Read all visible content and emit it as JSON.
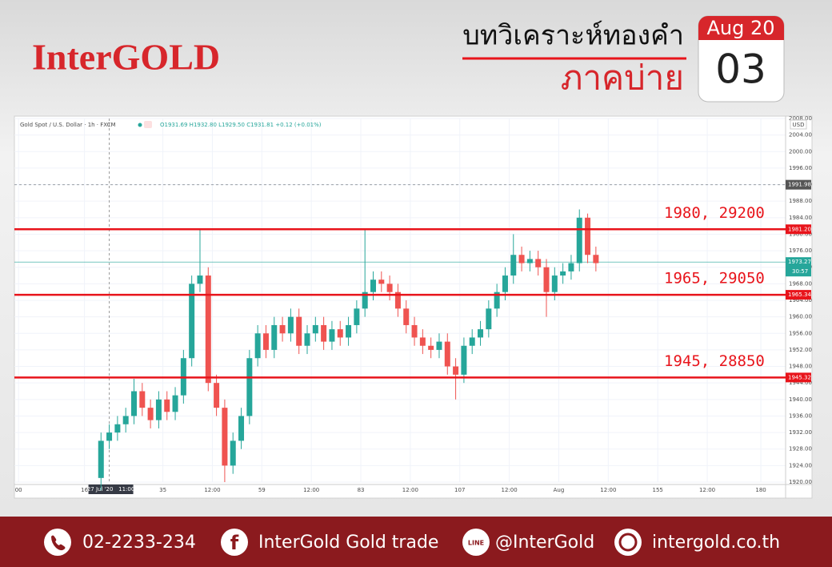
{
  "header": {
    "logo": "InterGOLD",
    "title": "บทวิเคราะห์ทองคำ",
    "subtitle": "ภาคบ่าย",
    "calendar_month": "Aug 20",
    "calendar_day": "03"
  },
  "chart_data": {
    "type": "candlestick",
    "title": "Gold Spot / U.S. Dollar · 1h · FXCM",
    "ohlc_summary": "O1931.69 H1932.80 L1929.50 C1931.81 +0.12 (+0.01%)",
    "currency": "USD",
    "up_color": "#26a69a",
    "down_color": "#ef5350",
    "x": [
      20,
      22,
      24,
      26,
      28,
      30,
      32,
      34,
      36,
      38,
      40,
      42,
      44,
      46,
      48,
      50,
      52,
      54,
      56,
      58,
      60,
      62,
      64,
      66,
      68,
      70,
      72,
      74,
      76,
      78,
      80,
      82,
      84,
      86,
      88,
      90,
      92,
      94,
      96,
      98,
      100,
      102,
      104,
      106,
      108,
      110,
      112,
      114,
      116,
      118,
      120,
      122,
      124,
      126,
      128,
      130,
      132,
      134,
      136,
      138,
      140
    ],
    "open": [
      1921,
      1930,
      1932,
      1934,
      1936,
      1942,
      1938,
      1935,
      1940,
      1937,
      1941,
      1950,
      1968,
      1970,
      1944,
      1938,
      1924,
      1930,
      1936,
      1950,
      1956,
      1952,
      1958,
      1956,
      1960,
      1953,
      1956,
      1958,
      1954,
      1957,
      1955,
      1958,
      1962,
      1966,
      1969,
      1968,
      1966,
      1962,
      1958,
      1955,
      1953,
      1952,
      1954,
      1948,
      1946,
      1953,
      1955,
      1957,
      1962,
      1966,
      1970,
      1975,
      1973,
      1974,
      1972,
      1966,
      1970,
      1971,
      1973,
      1984,
      1975
    ],
    "high": [
      1932,
      1934,
      1936,
      1938,
      1945,
      1944,
      1940,
      1942,
      1942,
      1943,
      1952,
      1970,
      1981,
      1972,
      1946,
      1940,
      1932,
      1938,
      1952,
      1958,
      1958,
      1960,
      1960,
      1962,
      1962,
      1958,
      1960,
      1960,
      1959,
      1959,
      1960,
      1964,
      1981,
      1971,
      1971,
      1970,
      1968,
      1964,
      1960,
      1957,
      1955,
      1956,
      1956,
      1950,
      1955,
      1957,
      1959,
      1964,
      1968,
      1972,
      1980,
      1977,
      1976,
      1976,
      1974,
      1972,
      1973,
      1975,
      1986,
      1985,
      1977
    ],
    "low": [
      1918,
      1928,
      1930,
      1932,
      1934,
      1936,
      1933,
      1933,
      1935,
      1935,
      1939,
      1948,
      1966,
      1942,
      1936,
      1920,
      1922,
      1928,
      1934,
      1948,
      1950,
      1950,
      1954,
      1954,
      1951,
      1951,
      1954,
      1952,
      1952,
      1953,
      1953,
      1956,
      1960,
      1964,
      1966,
      1964,
      1960,
      1956,
      1953,
      1951,
      1950,
      1950,
      1946,
      1940,
      1944,
      1951,
      1953,
      1955,
      1960,
      1964,
      1968,
      1971,
      1971,
      1970,
      1960,
      1964,
      1968,
      1969,
      1971,
      1973,
      1971
    ],
    "close": [
      1930,
      1932,
      1934,
      1936,
      1942,
      1938,
      1935,
      1940,
      1937,
      1941,
      1950,
      1968,
      1970,
      1944,
      1938,
      1924,
      1930,
      1936,
      1950,
      1956,
      1952,
      1958,
      1956,
      1960,
      1953,
      1956,
      1958,
      1954,
      1957,
      1955,
      1958,
      1962,
      1966,
      1969,
      1968,
      1966,
      1962,
      1958,
      1955,
      1953,
      1952,
      1954,
      1948,
      1946,
      1953,
      1955,
      1957,
      1962,
      1966,
      1970,
      1975,
      1973,
      1974,
      1972,
      1966,
      1970,
      1971,
      1973,
      1984,
      1975,
      1973
    ],
    "xlim": [
      -1,
      186
    ],
    "ylim": [
      1920,
      2008
    ],
    "xticks": [
      {
        "value": 0,
        "label": "00"
      },
      16,
      35,
      {
        "value": 47,
        "label": "12:00"
      },
      59,
      {
        "value": 71,
        "label": "12:00"
      },
      83,
      {
        "value": 95,
        "label": "12:00"
      },
      107,
      {
        "value": 119,
        "label": "12:00"
      },
      {
        "value": 131,
        "label": "Aug"
      },
      {
        "value": 143,
        "label": "12:00"
      },
      155,
      {
        "value": 167,
        "label": "12:00"
      },
      180
    ],
    "yticks": [
      {
        "value": 1920,
        "label": "1920.00"
      },
      {
        "value": 1924,
        "label": "1924.00"
      },
      {
        "value": 1928,
        "label": "1928.00"
      },
      {
        "value": 1932,
        "label": "1932.00"
      },
      {
        "value": 1936,
        "label": "1936.00"
      },
      {
        "value": 1940,
        "label": "1940.00"
      },
      {
        "value": 1944,
        "label": "1944.00"
      },
      {
        "value": 1948,
        "label": "1948.00"
      },
      {
        "value": 1952,
        "label": "1952.00"
      },
      {
        "value": 1956,
        "label": "1956.00"
      },
      {
        "value": 1960,
        "label": "1960.00"
      },
      {
        "value": 1964,
        "label": "1964.00"
      },
      {
        "value": 1968,
        "label": "1968.00"
      },
      {
        "value": 1972,
        "label": "1972.00"
      },
      {
        "value": 1976,
        "label": "1976.00"
      },
      {
        "value": 1980,
        "label": "1980.00"
      },
      {
        "value": 1984,
        "label": "1984.00"
      },
      {
        "value": 1988,
        "label": "1988.00"
      },
      {
        "value": 1992,
        "label": "1992.00"
      },
      {
        "value": 1996,
        "label": "1996.00"
      },
      {
        "value": 2000,
        "label": "2000.00"
      },
      {
        "value": 2004,
        "label": "2004.00"
      },
      {
        "value": 2008,
        "label": "2008.00"
      }
    ],
    "grid": true,
    "crosshair": {
      "x": 22,
      "label": "27 Jul '20   11:00"
    },
    "levels": [
      {
        "value": 1981.2,
        "label": "1981.20",
        "note": "1980, 29200"
      },
      {
        "value": 1965.34,
        "label": "1965.34",
        "note": "1965, 29050"
      },
      {
        "value": 1945.32,
        "label": "1945.32",
        "note": "1945, 28850"
      }
    ],
    "level_color": "#e8141b",
    "high_line": {
      "value": 1991.98,
      "label": "1991.98"
    },
    "last_price": {
      "value": 1973.27,
      "label": "1973.27",
      "countdown": "30:57"
    }
  },
  "footer": {
    "phone": "02-2233-234",
    "facebook": "InterGold Gold trade",
    "line": "@InterGold",
    "website": "intergold.co.th"
  }
}
